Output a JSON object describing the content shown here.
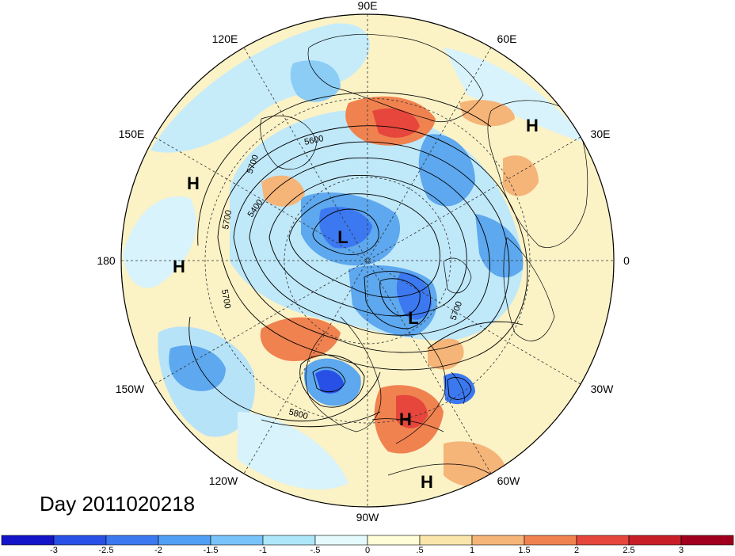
{
  "title": "Day 2011020218",
  "longitude_labels": [
    {
      "id": "90e",
      "text": "90E"
    },
    {
      "id": "60e",
      "text": "60E"
    },
    {
      "id": "30e",
      "text": "30E"
    },
    {
      "id": "0",
      "text": "0"
    },
    {
      "id": "30w",
      "text": "30W"
    },
    {
      "id": "60w",
      "text": "60W"
    },
    {
      "id": "90w",
      "text": "90W"
    },
    {
      "id": "120w",
      "text": "120W"
    },
    {
      "id": "150w",
      "text": "150W"
    },
    {
      "id": "180",
      "text": "180"
    },
    {
      "id": "150e",
      "text": "150E"
    },
    {
      "id": "120e",
      "text": "120E"
    }
  ],
  "pressure_centers": [
    {
      "id": "h-europe",
      "text": "H"
    },
    {
      "id": "h-north-pac",
      "text": "H"
    },
    {
      "id": "h-dateline",
      "text": "H"
    },
    {
      "id": "l-siberia",
      "text": "L"
    },
    {
      "id": "l-canada",
      "text": "L"
    },
    {
      "id": "h-caribbean",
      "text": "H"
    },
    {
      "id": "h-south-am",
      "text": "H"
    }
  ],
  "contour_labels": [
    {
      "id": "c5600a",
      "text": "5600"
    },
    {
      "id": "c5700a",
      "text": "5700"
    },
    {
      "id": "c5400",
      "text": "5400"
    },
    {
      "id": "c5700b",
      "text": "5700"
    },
    {
      "id": "c5700c",
      "text": "5700"
    },
    {
      "id": "c5700d",
      "text": "5700"
    },
    {
      "id": "c5800",
      "text": "5800"
    }
  ],
  "colorbar": {
    "labels": [
      "-3",
      "-2.5",
      "-2",
      "-1.5",
      "-1",
      "-.5",
      "0",
      ".5",
      "1",
      "1.5",
      "2",
      "2.5",
      "3"
    ],
    "colors": [
      "#1414c8",
      "#2850e6",
      "#3c78f0",
      "#50a0f5",
      "#78c3fa",
      "#aee6fa",
      "#e4fafc",
      "#fffcd7",
      "#fae6aa",
      "#f5b478",
      "#f08250",
      "#e6463c",
      "#c81e28",
      "#a0001e"
    ]
  }
}
